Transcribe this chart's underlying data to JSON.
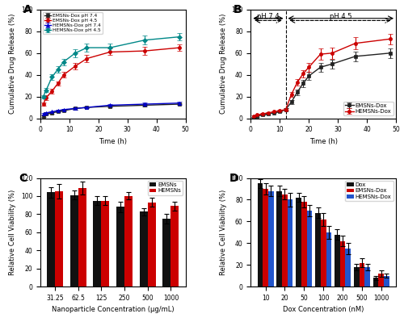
{
  "A": {
    "title": "A",
    "xlabel": "Time (h)",
    "ylabel": "Cumulative Drug Release (%)",
    "xlim": [
      0,
      50
    ],
    "ylim": [
      0,
      100
    ],
    "series": {
      "EMSNs-Dox pH 7.4": {
        "x": [
          1,
          2,
          4,
          6,
          8,
          12,
          16,
          24,
          36,
          48
        ],
        "y": [
          2,
          4,
          5,
          6,
          7,
          9,
          10,
          11,
          12,
          13
        ],
        "yerr": [
          0.5,
          0.8,
          0.7,
          0.6,
          0.8,
          0.9,
          0.8,
          1.0,
          1.2,
          1.0
        ],
        "color": "#222222",
        "marker": "s"
      },
      "EMSNs-Dox pH 4.5": {
        "x": [
          1,
          2,
          4,
          6,
          8,
          12,
          16,
          24,
          36,
          48
        ],
        "y": [
          13,
          19,
          25,
          32,
          40,
          48,
          55,
          61,
          62,
          65
        ],
        "yerr": [
          1.5,
          2.0,
          2.5,
          2.0,
          2.5,
          3.0,
          3.5,
          3.0,
          3.5,
          3.0
        ],
        "color": "#cc0000",
        "marker": "o"
      },
      "HEMSNs-Dox pH 7.4": {
        "x": [
          1,
          2,
          4,
          6,
          8,
          12,
          16,
          24,
          36,
          48
        ],
        "y": [
          4,
          5,
          6,
          7,
          8,
          9,
          10,
          12,
          13,
          14
        ],
        "yerr": [
          0.5,
          0.6,
          0.7,
          0.6,
          0.8,
          0.9,
          1.0,
          1.2,
          1.3,
          1.2
        ],
        "color": "#0000cc",
        "marker": "^"
      },
      "HEMSNs-Dox pH 4.5": {
        "x": [
          1,
          2,
          4,
          6,
          8,
          12,
          16,
          24,
          36,
          48
        ],
        "y": [
          20,
          26,
          38,
          45,
          52,
          60,
          65,
          65,
          72,
          75
        ],
        "yerr": [
          1.5,
          2.0,
          2.5,
          3.0,
          3.0,
          3.5,
          4.0,
          3.5,
          4.0,
          3.5
        ],
        "color": "#008888",
        "marker": "D"
      }
    }
  },
  "B": {
    "title": "B",
    "xlabel": "Time (h)",
    "ylabel": "Cumulative Drug Release (%)",
    "xlim": [
      0,
      50
    ],
    "ylim": [
      0,
      100
    ],
    "vline_x": 12,
    "series": {
      "EMSNs-Dox": {
        "x": [
          1,
          2,
          4,
          6,
          8,
          10,
          12,
          14,
          16,
          18,
          20,
          24,
          28,
          36,
          48
        ],
        "y": [
          1,
          2,
          3,
          4,
          5,
          6,
          8,
          15,
          24,
          32,
          39,
          47,
          50,
          57,
          60
        ],
        "yerr": [
          0.5,
          0.5,
          0.5,
          0.5,
          0.5,
          0.5,
          1.0,
          2.0,
          2.5,
          3.0,
          3.5,
          4.0,
          4.0,
          4.5,
          4.5
        ],
        "color": "#222222",
        "marker": "s"
      },
      "HEMSNs-Dox": {
        "x": [
          1,
          2,
          4,
          6,
          8,
          10,
          12,
          14,
          16,
          18,
          20,
          24,
          28,
          36,
          48
        ],
        "y": [
          2,
          3,
          4,
          5,
          6,
          7,
          8,
          22,
          33,
          41,
          47,
          59,
          60,
          69,
          73
        ],
        "yerr": [
          0.5,
          0.5,
          0.5,
          0.5,
          0.5,
          0.5,
          1.0,
          2.5,
          3.0,
          3.5,
          4.0,
          5.0,
          5.0,
          5.5,
          5.0
        ],
        "color": "#cc0000",
        "marker": "o"
      }
    }
  },
  "C": {
    "title": "C",
    "xlabel": "Nanoparticle Concentration (μg/mL)",
    "ylabel": "Relative Cell Viability (%)",
    "xlim_labels": [
      "31.25",
      "62.5",
      "125",
      "250",
      "500",
      "1000"
    ],
    "ylim": [
      0,
      120
    ],
    "yticks": [
      0,
      20,
      40,
      60,
      80,
      100,
      120
    ],
    "series": {
      "EMSNs": {
        "values": [
          104,
          101,
          95,
          88,
          83,
          75
        ],
        "errors": [
          6,
          5,
          5,
          6,
          4,
          5
        ],
        "color": "#111111"
      },
      "HEMSNs": {
        "values": [
          105,
          109,
          95,
          100,
          93,
          89
        ],
        "errors": [
          8,
          7,
          5,
          4,
          5,
          5
        ],
        "color": "#cc0000"
      }
    }
  },
  "D": {
    "title": "D",
    "xlabel": "Dox Concentration (nM)",
    "ylabel": "Relative Cell Viability (%)",
    "xlim_labels": [
      "10",
      "20",
      "50",
      "100",
      "200",
      "500",
      "1000"
    ],
    "ylim": [
      0,
      100
    ],
    "yticks": [
      0,
      20,
      40,
      60,
      80,
      100
    ],
    "series": {
      "Dox": {
        "values": [
          95,
          88,
          82,
          68,
          48,
          18,
          8
        ],
        "errors": [
          4,
          5,
          4,
          5,
          5,
          3,
          2
        ],
        "color": "#111111"
      },
      "EMSNs-Dox": {
        "values": [
          90,
          85,
          78,
          62,
          42,
          22,
          12
        ],
        "errors": [
          5,
          5,
          5,
          6,
          5,
          4,
          3
        ],
        "color": "#cc0000"
      },
      "HEMSNs-Dox": {
        "values": [
          88,
          80,
          70,
          50,
          35,
          18,
          10
        ],
        "errors": [
          5,
          6,
          5,
          6,
          5,
          3,
          2
        ],
        "color": "#2255cc"
      }
    }
  }
}
